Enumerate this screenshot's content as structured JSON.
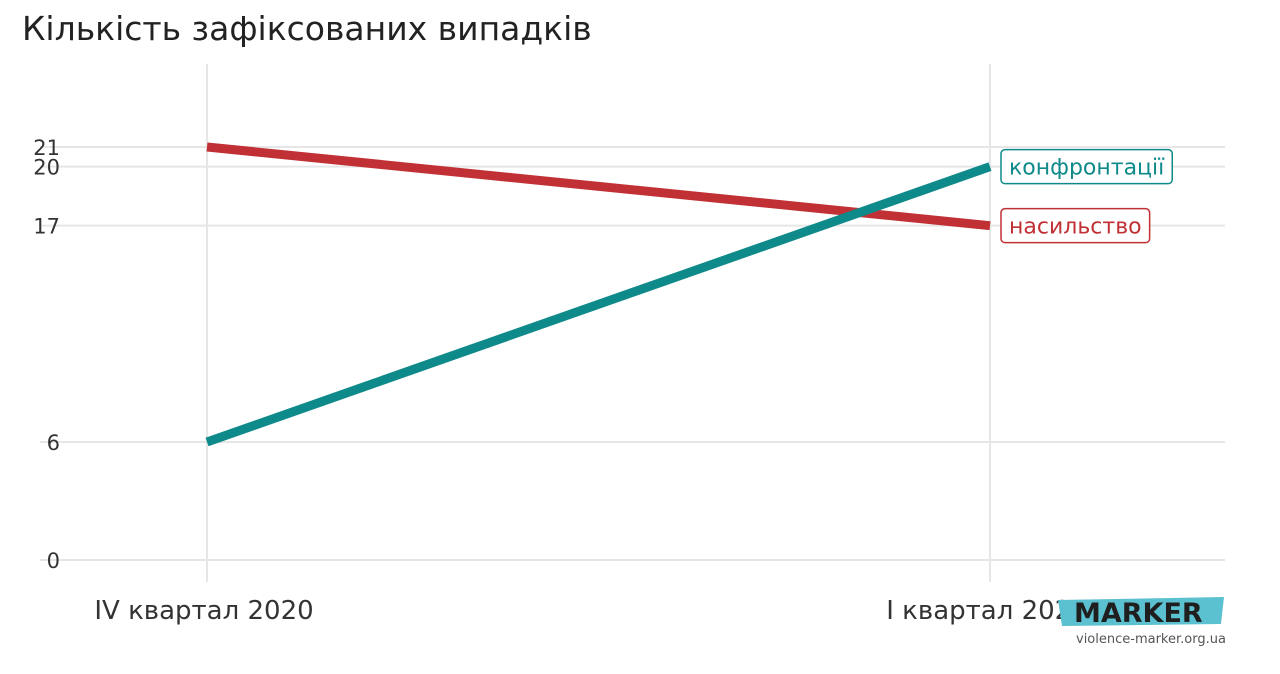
{
  "chart_data": {
    "type": "line",
    "title": "Кількість зафіксованих випадків",
    "categories": [
      "IV квартал 2020",
      "I квартал 2021"
    ],
    "yticks": [
      0,
      6,
      17,
      20,
      21
    ],
    "ylim": [
      0,
      21
    ],
    "grid": true,
    "series": [
      {
        "name": "насильство",
        "values": [
          21,
          17
        ],
        "color": "#c03034"
      },
      {
        "name": "конфронтації",
        "values": [
          6,
          20
        ],
        "color": "#0f8a8a"
      }
    ]
  },
  "brand": {
    "logo": "MARKER",
    "site": "violence-marker.org.ua",
    "accent": "#5bc0d0"
  }
}
